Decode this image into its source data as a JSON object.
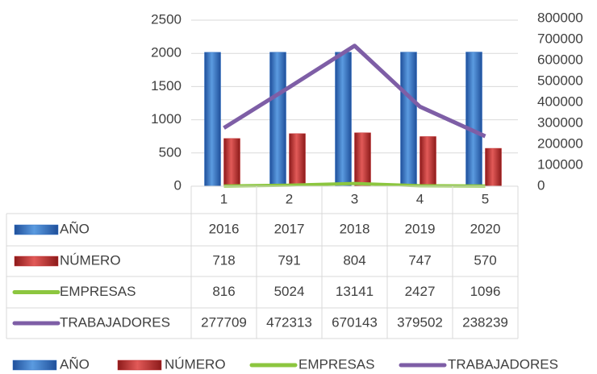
{
  "chart_data": {
    "type": "bar",
    "categories": [
      "1",
      "2",
      "3",
      "4",
      "5"
    ],
    "series": [
      {
        "name": "AÑO",
        "type": "bar",
        "color": "#2e6fc4",
        "values": [
          2016,
          2017,
          2018,
          2019,
          2020
        ]
      },
      {
        "name": "NÚMERO",
        "type": "bar",
        "color": "#c0282a",
        "values": [
          718,
          791,
          804,
          747,
          570
        ]
      },
      {
        "name": "EMPRESAS",
        "type": "line",
        "axis": "y2",
        "color": "#8cc63f",
        "values": [
          816,
          5024,
          13141,
          2427,
          1096
        ]
      },
      {
        "name": "TRABAJADORES",
        "type": "line",
        "axis": "y2",
        "color": "#7e5ea6",
        "values": [
          277709,
          472313,
          670143,
          379502,
          238239
        ]
      }
    ],
    "ylim": [
      0,
      2500
    ],
    "yticks": [
      0,
      500,
      1000,
      1500,
      2000,
      2500
    ],
    "y2lim": [
      0,
      800000
    ],
    "y2ticks": [
      0,
      100000,
      200000,
      300000,
      400000,
      500000,
      600000,
      700000,
      800000
    ],
    "data_table": true,
    "legend": "bottom"
  }
}
